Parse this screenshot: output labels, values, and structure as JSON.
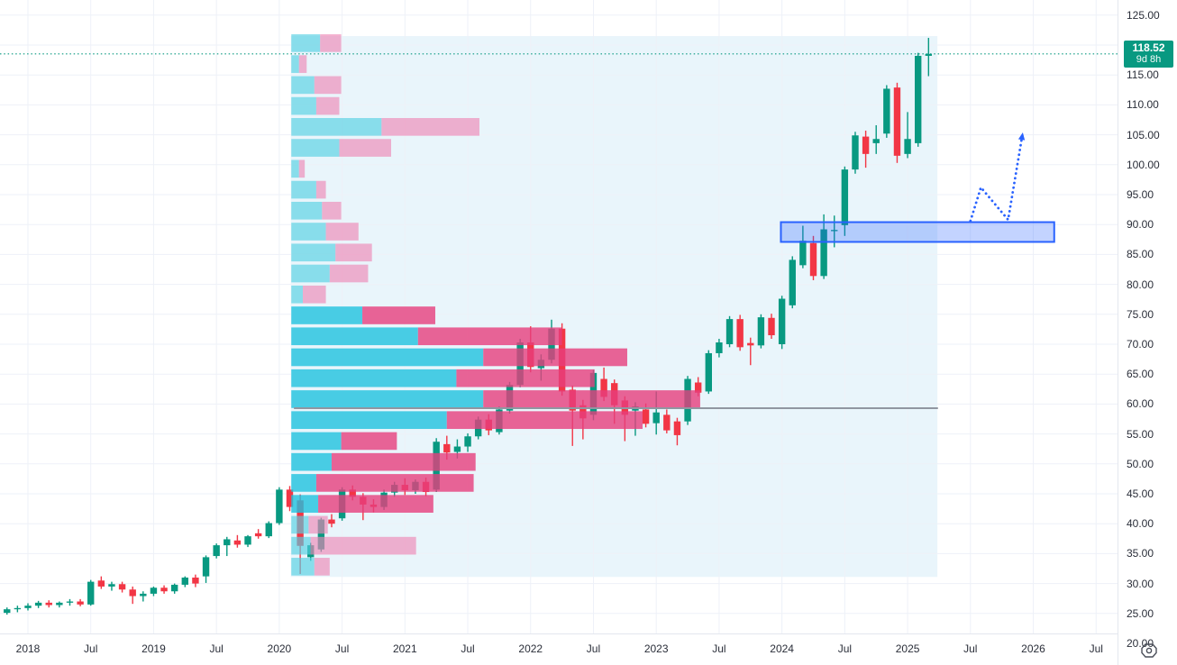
{
  "chart_data": {
    "type": "candlestick",
    "interval": "1M",
    "grid": true,
    "colors": {
      "up": "#089981",
      "down": "#f23645",
      "profile_up_light": "#55cfe2",
      "profile_down_light": "#ee87b5",
      "profile_up_vivid": "#1fc2de",
      "profile_down_vivid": "#e63f7d",
      "range_bg": "#e9f5fb",
      "gridline": "#eef1f8",
      "gray_line": "#9196a1",
      "drawing_blue": "#2962ff",
      "zone_fill": "rgba(41,98,255,0.28)",
      "badge_bg": "#089981",
      "current_price_line": "#089981",
      "axis_text": "#2a2e39"
    },
    "y_axis": {
      "min": 20,
      "max": 125,
      "step": 5,
      "labels": [
        "125.00",
        "120.00",
        "115.00",
        "110.00",
        "105.00",
        "100.00",
        "95.00",
        "90.00",
        "85.00",
        "80.00",
        "75.00",
        "70.00",
        "65.00",
        "60.00",
        "55.00",
        "50.00",
        "45.00",
        "40.00",
        "35.00",
        "30.00",
        "25.00",
        "20.00"
      ]
    },
    "x_axis": {
      "ticks": [
        {
          "m": 0,
          "label": "2018"
        },
        {
          "m": 6,
          "label": "Jul"
        },
        {
          "m": 12,
          "label": "2019"
        },
        {
          "m": 18,
          "label": "Jul"
        },
        {
          "m": 24,
          "label": "2020"
        },
        {
          "m": 30,
          "label": "Jul"
        },
        {
          "m": 36,
          "label": "2021"
        },
        {
          "m": 42,
          "label": "Jul"
        },
        {
          "m": 48,
          "label": "2022"
        },
        {
          "m": 54,
          "label": "Jul"
        },
        {
          "m": 60,
          "label": "2023"
        },
        {
          "m": 66,
          "label": "Jul"
        },
        {
          "m": 72,
          "label": "2024"
        },
        {
          "m": 78,
          "label": "Jul"
        },
        {
          "m": 84,
          "label": "2025"
        },
        {
          "m": 90,
          "label": "Jul"
        },
        {
          "m": 96,
          "label": "2026"
        },
        {
          "m": 102,
          "label": "Jul"
        }
      ]
    },
    "current_price": {
      "display": "118.52",
      "value": 118.52,
      "countdown": "9d 8h"
    },
    "candles": [
      [
        "2017-10",
        24.8,
        25.5,
        24.2,
        25.1
      ],
      [
        "2017-11",
        25.1,
        26.0,
        24.8,
        25.7
      ],
      [
        "2017-12",
        25.7,
        26.3,
        25.2,
        25.9
      ],
      [
        "2018-01",
        25.9,
        26.7,
        25.5,
        26.3
      ],
      [
        "2018-02",
        26.3,
        27.1,
        25.9,
        26.8
      ],
      [
        "2018-03",
        26.8,
        27.2,
        26.0,
        26.4
      ],
      [
        "2018-04",
        26.4,
        27.0,
        26.0,
        26.8
      ],
      [
        "2018-05",
        26.8,
        27.4,
        26.3,
        27.0
      ],
      [
        "2018-06",
        27.0,
        27.4,
        26.2,
        26.5
      ],
      [
        "2018-07",
        26.5,
        30.6,
        26.3,
        30.3
      ],
      [
        "2018-08",
        30.5,
        31.2,
        29.1,
        29.5
      ],
      [
        "2018-09",
        29.5,
        30.3,
        28.8,
        29.9
      ],
      [
        "2018-10",
        29.9,
        30.3,
        28.5,
        29.0
      ],
      [
        "2018-11",
        29.0,
        29.5,
        26.6,
        27.9
      ],
      [
        "2018-12",
        27.9,
        28.7,
        27.0,
        28.3
      ],
      [
        "2019-01",
        28.3,
        29.5,
        27.9,
        29.3
      ],
      [
        "2019-02",
        29.3,
        29.7,
        28.3,
        28.7
      ],
      [
        "2019-03",
        28.7,
        30.0,
        28.3,
        29.8
      ],
      [
        "2019-04",
        29.8,
        31.2,
        29.4,
        31.0
      ],
      [
        "2019-05",
        31.0,
        31.5,
        29.4,
        30.0
      ],
      [
        "2019-06",
        31.2,
        34.7,
        30.1,
        34.4
      ],
      [
        "2019-07",
        34.6,
        36.7,
        34.2,
        36.4
      ],
      [
        "2019-08",
        36.4,
        37.8,
        34.6,
        37.4
      ],
      [
        "2019-09",
        37.2,
        38.1,
        36.0,
        36.5
      ],
      [
        "2019-10",
        36.5,
        38.1,
        36.1,
        37.9
      ],
      [
        "2019-11",
        38.4,
        39.1,
        37.5,
        37.9
      ],
      [
        "2019-12",
        37.9,
        40.4,
        37.6,
        40.1
      ],
      [
        "2020-01",
        40.1,
        46.1,
        39.8,
        45.7
      ],
      [
        "2020-02",
        45.7,
        46.3,
        42.1,
        42.8
      ],
      [
        "2020-03",
        43.9,
        44.9,
        31.6,
        36.3
      ],
      [
        "2020-04",
        34.4,
        36.8,
        33.8,
        36.4
      ],
      [
        "2020-05",
        35.7,
        41.0,
        35.3,
        40.7
      ],
      [
        "2020-06",
        40.7,
        41.6,
        39.4,
        40.0
      ],
      [
        "2020-07",
        40.9,
        46.1,
        40.5,
        45.7
      ],
      [
        "2020-08",
        45.7,
        46.4,
        43.9,
        44.5
      ],
      [
        "2020-09",
        44.5,
        45.1,
        40.6,
        43.2
      ],
      [
        "2020-10",
        43.2,
        44.1,
        41.9,
        42.8
      ],
      [
        "2020-11",
        42.8,
        45.7,
        42.3,
        45.2
      ],
      [
        "2020-12",
        45.2,
        47.0,
        44.5,
        46.5
      ],
      [
        "2021-01",
        46.5,
        47.6,
        44.8,
        45.6
      ],
      [
        "2021-02",
        45.6,
        47.4,
        45.0,
        47.0
      ],
      [
        "2021-03",
        47.0,
        47.7,
        44.6,
        45.3
      ],
      [
        "2021-04",
        45.7,
        54.3,
        45.3,
        53.7
      ],
      [
        "2021-05",
        53.3,
        54.7,
        50.7,
        51.9
      ],
      [
        "2021-06",
        52.0,
        54.1,
        50.9,
        52.9
      ],
      [
        "2021-07",
        52.9,
        55.1,
        52.0,
        54.6
      ],
      [
        "2021-08",
        54.6,
        57.9,
        54.1,
        57.4
      ],
      [
        "2021-09",
        57.4,
        58.3,
        54.8,
        55.6
      ],
      [
        "2021-10",
        55.3,
        59.6,
        54.9,
        59.1
      ],
      [
        "2021-11",
        58.9,
        63.7,
        58.4,
        63.2
      ],
      [
        "2021-12",
        63.2,
        70.9,
        62.8,
        70.3
      ],
      [
        "2022-01",
        70.3,
        73.0,
        65.3,
        66.2
      ],
      [
        "2022-02",
        66.0,
        68.3,
        63.9,
        67.4
      ],
      [
        "2022-03",
        67.4,
        74.1,
        66.8,
        72.6
      ],
      [
        "2022-04",
        72.6,
        73.5,
        61.4,
        62.1
      ],
      [
        "2022-05",
        62.4,
        63.1,
        53.0,
        58.9
      ],
      [
        "2022-06",
        59.8,
        60.7,
        54.1,
        57.6
      ],
      [
        "2022-07",
        58.2,
        65.7,
        57.3,
        65.2
      ],
      [
        "2022-08",
        64.2,
        66.1,
        60.5,
        61.2
      ],
      [
        "2022-09",
        63.5,
        64.1,
        56.7,
        59.8
      ],
      [
        "2022-10",
        60.6,
        61.3,
        53.8,
        58.2
      ],
      [
        "2022-11",
        58.9,
        60.3,
        54.7,
        59.6
      ],
      [
        "2022-12",
        59.1,
        60.1,
        56.1,
        56.7
      ],
      [
        "2023-01",
        56.8,
        62.1,
        54.9,
        58.6
      ],
      [
        "2023-02",
        58.2,
        59.1,
        55.1,
        55.6
      ],
      [
        "2023-03",
        57.1,
        57.7,
        53.1,
        54.8
      ],
      [
        "2023-04",
        57.1,
        64.7,
        56.5,
        64.2
      ],
      [
        "2023-05",
        63.6,
        64.5,
        61.3,
        61.9
      ],
      [
        "2023-06",
        62.1,
        69.0,
        61.7,
        68.5
      ],
      [
        "2023-07",
        68.5,
        70.9,
        67.8,
        70.3
      ],
      [
        "2023-08",
        70.0,
        74.7,
        69.5,
        74.2
      ],
      [
        "2023-09",
        74.2,
        74.9,
        68.9,
        69.5
      ],
      [
        "2023-10",
        70.2,
        71.1,
        66.5,
        69.8
      ],
      [
        "2023-11",
        69.8,
        75.0,
        69.3,
        74.5
      ],
      [
        "2023-12",
        74.4,
        75.1,
        70.9,
        71.5
      ],
      [
        "2024-01",
        70.0,
        78.1,
        69.2,
        77.6
      ],
      [
        "2024-02",
        76.5,
        84.7,
        76.0,
        84.1
      ],
      [
        "2024-03",
        83.2,
        89.8,
        82.7,
        87.3
      ],
      [
        "2024-04",
        86.9,
        88.1,
        80.7,
        81.4
      ],
      [
        "2024-05",
        81.4,
        91.7,
        80.9,
        89.2
      ],
      [
        "2024-06",
        88.9,
        91.5,
        86.2,
        89.1
      ],
      [
        "2024-07",
        89.9,
        99.7,
        88.1,
        99.2
      ],
      [
        "2024-08",
        99.2,
        105.5,
        98.5,
        104.9
      ],
      [
        "2024-09",
        104.7,
        105.7,
        99.5,
        101.8
      ],
      [
        "2024-10",
        103.6,
        106.6,
        101.8,
        104.3
      ],
      [
        "2024-11",
        105.2,
        113.3,
        104.5,
        112.7
      ],
      [
        "2024-12",
        112.9,
        113.7,
        100.3,
        101.5
      ],
      [
        "2025-01",
        101.8,
        108.8,
        101.1,
        104.3
      ],
      [
        "2025-02",
        103.6,
        118.7,
        103.0,
        118.2
      ],
      [
        "2025-03",
        118.2,
        121.2,
        114.8,
        118.52
      ]
    ],
    "volume_profile": {
      "note": "fixed-range profile Mar2020..Mar2025; widths are pixel-estimated relative volumes; va=value-area (vivid)",
      "range_m_start": 25.45,
      "range_m_end": 86.5,
      "range_price_high": 121.5,
      "range_price_low": 31.1,
      "rows": [
        {
          "hi": 121.8,
          "lo": 118.6,
          "up": 15,
          "down": 11,
          "va": false
        },
        {
          "hi": 118.3,
          "lo": 115.1,
          "up": 4,
          "down": 4,
          "va": false
        },
        {
          "hi": 114.8,
          "lo": 111.6,
          "up": 12,
          "down": 14,
          "va": false
        },
        {
          "hi": 111.3,
          "lo": 108.1,
          "up": 13,
          "down": 12,
          "va": false
        },
        {
          "hi": 107.8,
          "lo": 104.6,
          "up": 47,
          "down": 51,
          "va": false
        },
        {
          "hi": 104.3,
          "lo": 101.1,
          "up": 25,
          "down": 27,
          "va": false
        },
        {
          "hi": 100.8,
          "lo": 97.6,
          "up": 4,
          "down": 3,
          "va": false
        },
        {
          "hi": 97.3,
          "lo": 94.1,
          "up": 13,
          "down": 5,
          "va": false
        },
        {
          "hi": 93.8,
          "lo": 90.6,
          "up": 16,
          "down": 10,
          "va": false
        },
        {
          "hi": 90.3,
          "lo": 87.1,
          "up": 18,
          "down": 17,
          "va": false
        },
        {
          "hi": 86.8,
          "lo": 83.6,
          "up": 23,
          "down": 19,
          "va": false
        },
        {
          "hi": 83.3,
          "lo": 80.1,
          "up": 20,
          "down": 20,
          "va": false
        },
        {
          "hi": 79.8,
          "lo": 76.6,
          "up": 6,
          "down": 12,
          "va": false
        },
        {
          "hi": 76.3,
          "lo": 73.1,
          "up": 37,
          "down": 38,
          "va": true
        },
        {
          "hi": 72.8,
          "lo": 69.6,
          "up": 66,
          "down": 75,
          "va": true
        },
        {
          "hi": 69.3,
          "lo": 66.1,
          "up": 100,
          "down": 75,
          "va": true
        },
        {
          "hi": 65.8,
          "lo": 62.6,
          "up": 86,
          "down": 72,
          "va": true
        },
        {
          "hi": 62.3,
          "lo": 59.1,
          "up": 100,
          "down": 113,
          "va": true
        },
        {
          "hi": 58.8,
          "lo": 55.6,
          "up": 81,
          "down": 102,
          "va": true
        },
        {
          "hi": 55.3,
          "lo": 52.1,
          "up": 26,
          "down": 29,
          "va": true
        },
        {
          "hi": 51.8,
          "lo": 48.6,
          "up": 21,
          "down": 75,
          "va": true
        },
        {
          "hi": 48.3,
          "lo": 45.1,
          "up": 13,
          "down": 82,
          "va": true
        },
        {
          "hi": 44.8,
          "lo": 41.6,
          "up": 14,
          "down": 60,
          "va": true
        },
        {
          "hi": 41.3,
          "lo": 38.1,
          "up": 9,
          "down": 10,
          "va": false
        },
        {
          "hi": 37.8,
          "lo": 34.6,
          "up": 10,
          "down": 55,
          "va": false
        },
        {
          "hi": 34.3,
          "lo": 31.1,
          "up": 12,
          "down": 8,
          "va": false
        }
      ]
    },
    "drawings": {
      "gray_line": {
        "price": 59.3,
        "m_start": 25.4,
        "m_end": 86.9
      },
      "zone_rect": {
        "price_high": 90.4,
        "price_low": 87.1,
        "m_start": 71.9,
        "m_end": 98.0
      },
      "arrow": {
        "points": [
          [
            90.0,
            90.6
          ],
          [
            91.0,
            96.2
          ],
          [
            93.6,
            90.8
          ],
          [
            95.0,
            105.4
          ]
        ]
      }
    }
  },
  "icons": {
    "axis_corner": "octagon-circle"
  }
}
